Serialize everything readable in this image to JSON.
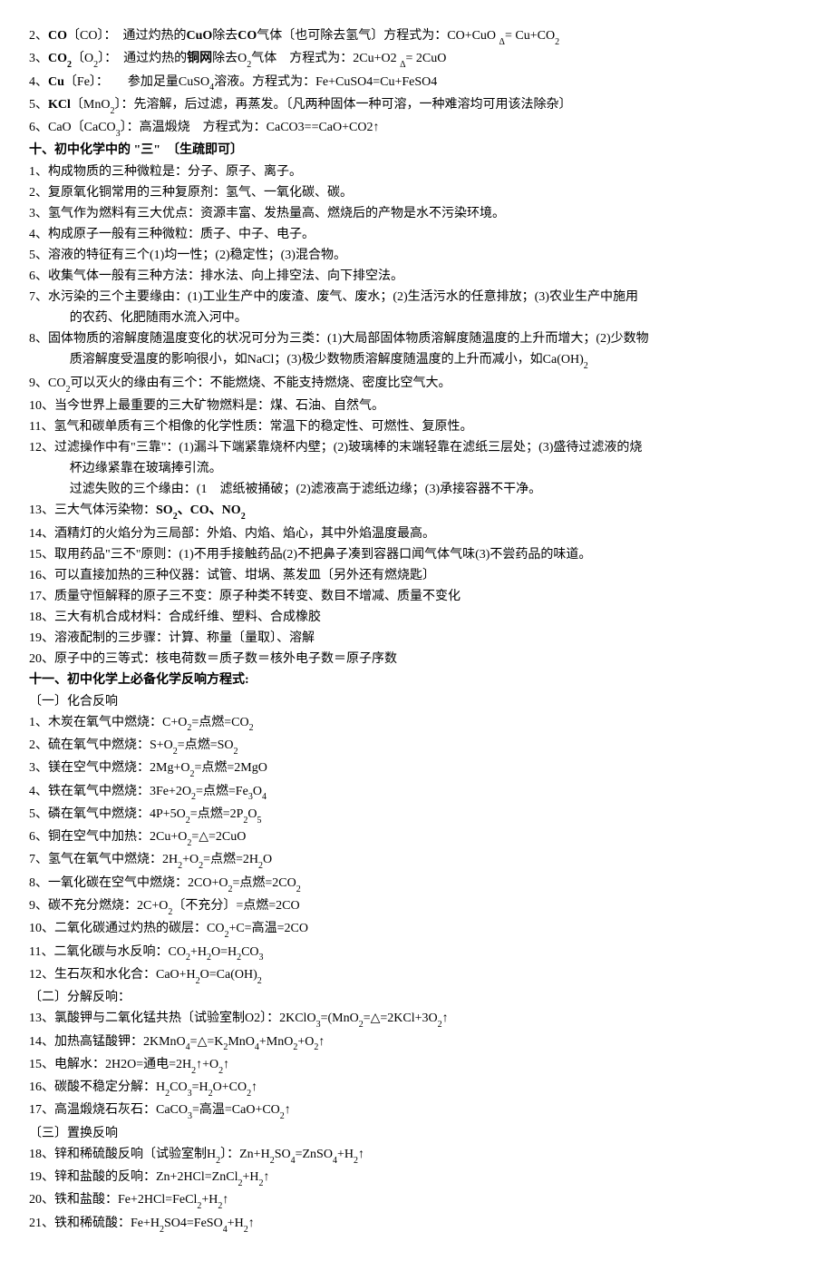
{
  "lines": [
    {
      "cls": "line",
      "html": "2、<b>CO</b>〔CO〕：　通过灼热的<b>CuO</b>除去<b>CO</b>气体〔也可除去氢气〕方程式为：CO+CuO <span class='sub'>Δ</span>= Cu+CO<span class='sub'>2</span>"
    },
    {
      "cls": "line",
      "html": "3、<b>CO<span class='sub'>2</span></b>〔O<span class='sub'>2</span>〕：　通过灼热的<b>铜网</b>除去O<span class='sub'>2</span>气体　方程式为：2Cu+O2 <span class='sub'>Δ</span>= 2CuO"
    },
    {
      "cls": "line",
      "html": "4、<b>Cu</b>〔Fe〕：　　参加足量CuSO<span class='sub'>4</span>溶液。方程式为：Fe+CuSO4=Cu+FeSO4"
    },
    {
      "cls": "line",
      "html": "5、<b>KCl</b>〔MnO<span class='sub'>2</span>〕：先溶解，后过滤，再蒸发。〔凡两种固体一种可溶，一种难溶均可用该法除杂〕"
    },
    {
      "cls": "line",
      "html": "6、CaO〔CaCO<span class='sub'>3</span>〕：高温煅烧　方程式为：CaCO3==CaO+CO2↑"
    },
    {
      "cls": "heading",
      "html": "十、初中化学中的 \"三\"　〔生疏即可〕"
    },
    {
      "cls": "line",
      "html": "1、构成物质的三种微粒是：分子、原子、离子。"
    },
    {
      "cls": "line",
      "html": "2、复原氧化铜常用的三种复原剂：氢气、一氧化碳、碳。"
    },
    {
      "cls": "line",
      "html": "3、氢气作为燃料有三大优点：资源丰富、发热量高、燃烧后的产物是水不污染环境。"
    },
    {
      "cls": "line",
      "html": "4、构成原子一般有三种微粒：质子、中子、电子。"
    },
    {
      "cls": "line",
      "html": "5、溶液的特征有三个(1)均一性；(2)稳定性；(3)混合物。"
    },
    {
      "cls": "line",
      "html": "6、收集气体一般有三种方法：排水法、向上排空法、向下排空法。"
    },
    {
      "cls": "line",
      "html": "7、水污染的三个主要缘由：(1)工业生产中的废渣、废气、废水；(2)生活污水的任意排放；(3)农业生产中施用"
    },
    {
      "cls": "line indent",
      "html": "的农药、化肥随雨水流入河中。"
    },
    {
      "cls": "line",
      "html": "8、固体物质的溶解度随温度变化的状况可分为三类：(1)大局部固体物质溶解度随温度的上升而增大；(2)少数物"
    },
    {
      "cls": "line indent",
      "html": "质溶解度受温度的影响很小，如NaCl；(3)极少数物质溶解度随温度的上升而减小，如Ca(OH)<span class='sub'>2</span>"
    },
    {
      "cls": "line",
      "html": "9、CO<span class='sub'>2</span>可以灭火的缘由有三个：不能燃烧、不能支持燃烧、密度比空气大。"
    },
    {
      "cls": "line",
      "html": "10、当今世界上最重要的三大矿物燃料是：煤、石油、自然气。"
    },
    {
      "cls": "line",
      "html": "11、氢气和碳单质有三个相像的化学性质：常温下的稳定性、可燃性、复原性。"
    },
    {
      "cls": "line",
      "html": "12、过滤操作中有\"三靠\"：(1)漏斗下端紧靠烧杯内壁；(2)玻璃棒的末端轻靠在滤纸三层处；(3)盛待过滤液的烧"
    },
    {
      "cls": "line indent",
      "html": "杯边缘紧靠在玻璃捧引流。"
    },
    {
      "cls": "line indent",
      "html": "过滤失败的三个缘由：(1　滤纸被捅破；(2)滤液高于滤纸边缘；(3)承接容器不干净。"
    },
    {
      "cls": "line",
      "html": "13、三大气体污染物：<b>SO<span class='sub'>2</span>、CO、NO<span class='sub'>2</span></b>"
    },
    {
      "cls": "line",
      "html": "14、酒精灯的火焰分为三局部：外焰、内焰、焰心，其中外焰温度最高。"
    },
    {
      "cls": "line",
      "html": "15、取用药品\"三不\"原则：(1)不用手接触药品(2)不把鼻子凑到容器口闻气体气味(3)不尝药品的味道。"
    },
    {
      "cls": "line",
      "html": "16、可以直接加热的三种仪器：试管、坩埚、蒸发皿〔另外还有燃烧匙〕"
    },
    {
      "cls": "line",
      "html": "17、质量守恒解释的原子三不变：原子种类不转变、数目不增减、质量不变化"
    },
    {
      "cls": "line",
      "html": "18、三大有机合成材料：合成纤维、塑料、合成橡胶"
    },
    {
      "cls": "line",
      "html": "19、溶液配制的三步骤：计算、称量〔量取〕、溶解"
    },
    {
      "cls": "line",
      "html": "20、原子中的三等式：核电荷数＝质子数＝核外电子数＝原子序数"
    },
    {
      "cls": "heading",
      "html": "十一、初中化学上必备化学反响方程式:"
    },
    {
      "cls": "line",
      "html": "〔一〕化合反响"
    },
    {
      "cls": "line",
      "html": "1、木炭在氧气中燃烧：C+O<span class='sub'>2</span>=点燃=CO<span class='sub'>2</span>"
    },
    {
      "cls": "line",
      "html": "2、硫在氧气中燃烧：S+O<span class='sub'>2</span>=点燃=SO<span class='sub'>2</span>"
    },
    {
      "cls": "line",
      "html": "3、镁在空气中燃烧：2Mg+O<span class='sub'>2</span>=点燃=2MgO"
    },
    {
      "cls": "line",
      "html": "4、铁在氧气中燃烧：3Fe+2O<span class='sub'>2</span>=点燃=Fe<span class='sub'>3</span>O<span class='sub'>4</span>"
    },
    {
      "cls": "line",
      "html": "5、磷在氧气中燃烧：4P+5O<span class='sub'>2</span>=点燃=2P<span class='sub'>2</span>O<span class='sub'>5</span>"
    },
    {
      "cls": "line",
      "html": "6、铜在空气中加热：2Cu+O<span class='sub'>2</span>=△=2CuO"
    },
    {
      "cls": "line",
      "html": "7、氢气在氧气中燃烧：2H<span class='sub'>2</span>+O<span class='sub'>2</span>=点燃=2H<span class='sub'>2</span>O"
    },
    {
      "cls": "line",
      "html": "8、一氧化碳在空气中燃烧：2CO+O<span class='sub'>2</span>=点燃=2CO<span class='sub'>2</span>"
    },
    {
      "cls": "line",
      "html": "9、碳不充分燃烧：2C+O<span class='sub'>2</span>〔不充分〕=点燃=2CO"
    },
    {
      "cls": "line",
      "html": "10、二氧化碳通过灼热的碳层：CO<span class='sub'>2</span>+C=高温=2CO"
    },
    {
      "cls": "line",
      "html": "11、二氧化碳与水反响：CO<span class='sub'>2</span>+H<span class='sub'>2</span>O=H<span class='sub'>2</span>CO<span class='sub'>3</span>"
    },
    {
      "cls": "line",
      "html": "12、生石灰和水化合：CaO+H<span class='sub'>2</span>O=Ca(OH)<span class='sub'>2</span>"
    },
    {
      "cls": "line",
      "html": "〔二〕分解反响："
    },
    {
      "cls": "line",
      "html": "13、氯酸钾与二氧化锰共热〔试验室制O2〕：2KClO<span class='sub'>3</span>=(MnO<span class='sub'>2</span>=△=2KCl+3O<span class='sub'>2</span>↑"
    },
    {
      "cls": "line",
      "html": "14、加热高锰酸钾：2KMnO<span class='sub'>4</span>=△=K<span class='sub'>2</span>MnO<span class='sub'>4</span>+MnO<span class='sub'>2</span>+O<span class='sub'>2</span>↑"
    },
    {
      "cls": "line",
      "html": "15、电解水：2H2O=通电=2H<span class='sub'>2</span>↑+O<span class='sub'>2</span>↑"
    },
    {
      "cls": "line",
      "html": "16、碳酸不稳定分解：H<span class='sub'>2</span>CO<span class='sub'>3</span>=H<span class='sub'>2</span>O+CO<span class='sub'>2</span>↑"
    },
    {
      "cls": "line",
      "html": "17、高温煅烧石灰石：CaCO<span class='sub'>3</span>=高温=CaO+CO<span class='sub'>2</span>↑"
    },
    {
      "cls": "line",
      "html": "〔三〕置换反响"
    },
    {
      "cls": "line",
      "html": "18、锌和稀硫酸反响〔试验室制H<span class='sub'>2</span>〕：Zn+H<span class='sub'>2</span>SO<span class='sub'>4</span>=ZnSO<span class='sub'>4</span>+H<span class='sub'>2</span>↑"
    },
    {
      "cls": "line",
      "html": "19、锌和盐酸的反响：Zn+2HCl=ZnCl<span class='sub'>2</span>+H<span class='sub'>2</span>↑"
    },
    {
      "cls": "line",
      "html": "20、铁和盐酸：Fe+2HCl=FeCl<span class='sub'>2</span>+H<span class='sub'>2</span>↑"
    },
    {
      "cls": "line",
      "html": "21、铁和稀硫酸：Fe+H<span class='sub'>2</span>SO4=FeSO<span class='sub'>4</span>+H<span class='sub'>2</span>↑"
    }
  ]
}
